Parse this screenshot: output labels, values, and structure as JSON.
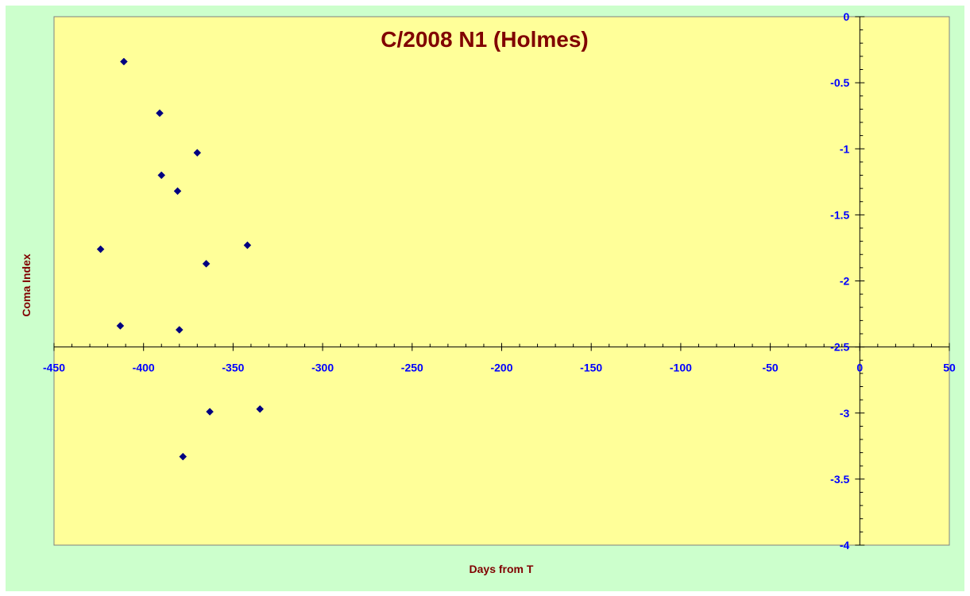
{
  "chart_data": {
    "type": "scatter",
    "title": "C/2008 N1 (Holmes)",
    "xlabel": "Days from T",
    "ylabel": "Coma Index",
    "xlim": [
      -450,
      50
    ],
    "ylim": [
      -4,
      0
    ],
    "x_ticks": [
      -450,
      -400,
      -350,
      -300,
      -250,
      -200,
      -150,
      -100,
      -50,
      0,
      50
    ],
    "y_ticks": [
      0,
      -0.5,
      -1,
      -1.5,
      -2,
      -2.5,
      -3,
      -3.5,
      -4
    ],
    "x_tick_labels": [
      "-450",
      "-400",
      "-350",
      "-300",
      "-250",
      "-200",
      "-150",
      "-100",
      "-50",
      "0",
      "50"
    ],
    "y_tick_labels": [
      "0",
      "-0.5",
      "-1",
      "-1.5",
      "-2",
      "-2.5",
      "-3",
      "-3.5",
      "-4"
    ],
    "grid": false,
    "legend": "none",
    "colors": {
      "chart_area": "#ccffcc",
      "plot_area": "#ffff99",
      "marker": "#000080",
      "title": "#800000",
      "ticks": "#0000ff"
    },
    "series": [
      {
        "marker": "diamond",
        "points": [
          {
            "x": -411,
            "y": -0.34
          },
          {
            "x": -391,
            "y": -0.73
          },
          {
            "x": -370,
            "y": -1.03
          },
          {
            "x": -390,
            "y": -1.2
          },
          {
            "x": -381,
            "y": -1.32
          },
          {
            "x": -424,
            "y": -1.76
          },
          {
            "x": -342,
            "y": -1.73
          },
          {
            "x": -365,
            "y": -1.87
          },
          {
            "x": -413,
            "y": -2.34
          },
          {
            "x": -380,
            "y": -2.37
          },
          {
            "x": -363,
            "y": -2.99
          },
          {
            "x": -335,
            "y": -2.97
          },
          {
            "x": -378,
            "y": -3.33
          }
        ]
      }
    ]
  }
}
